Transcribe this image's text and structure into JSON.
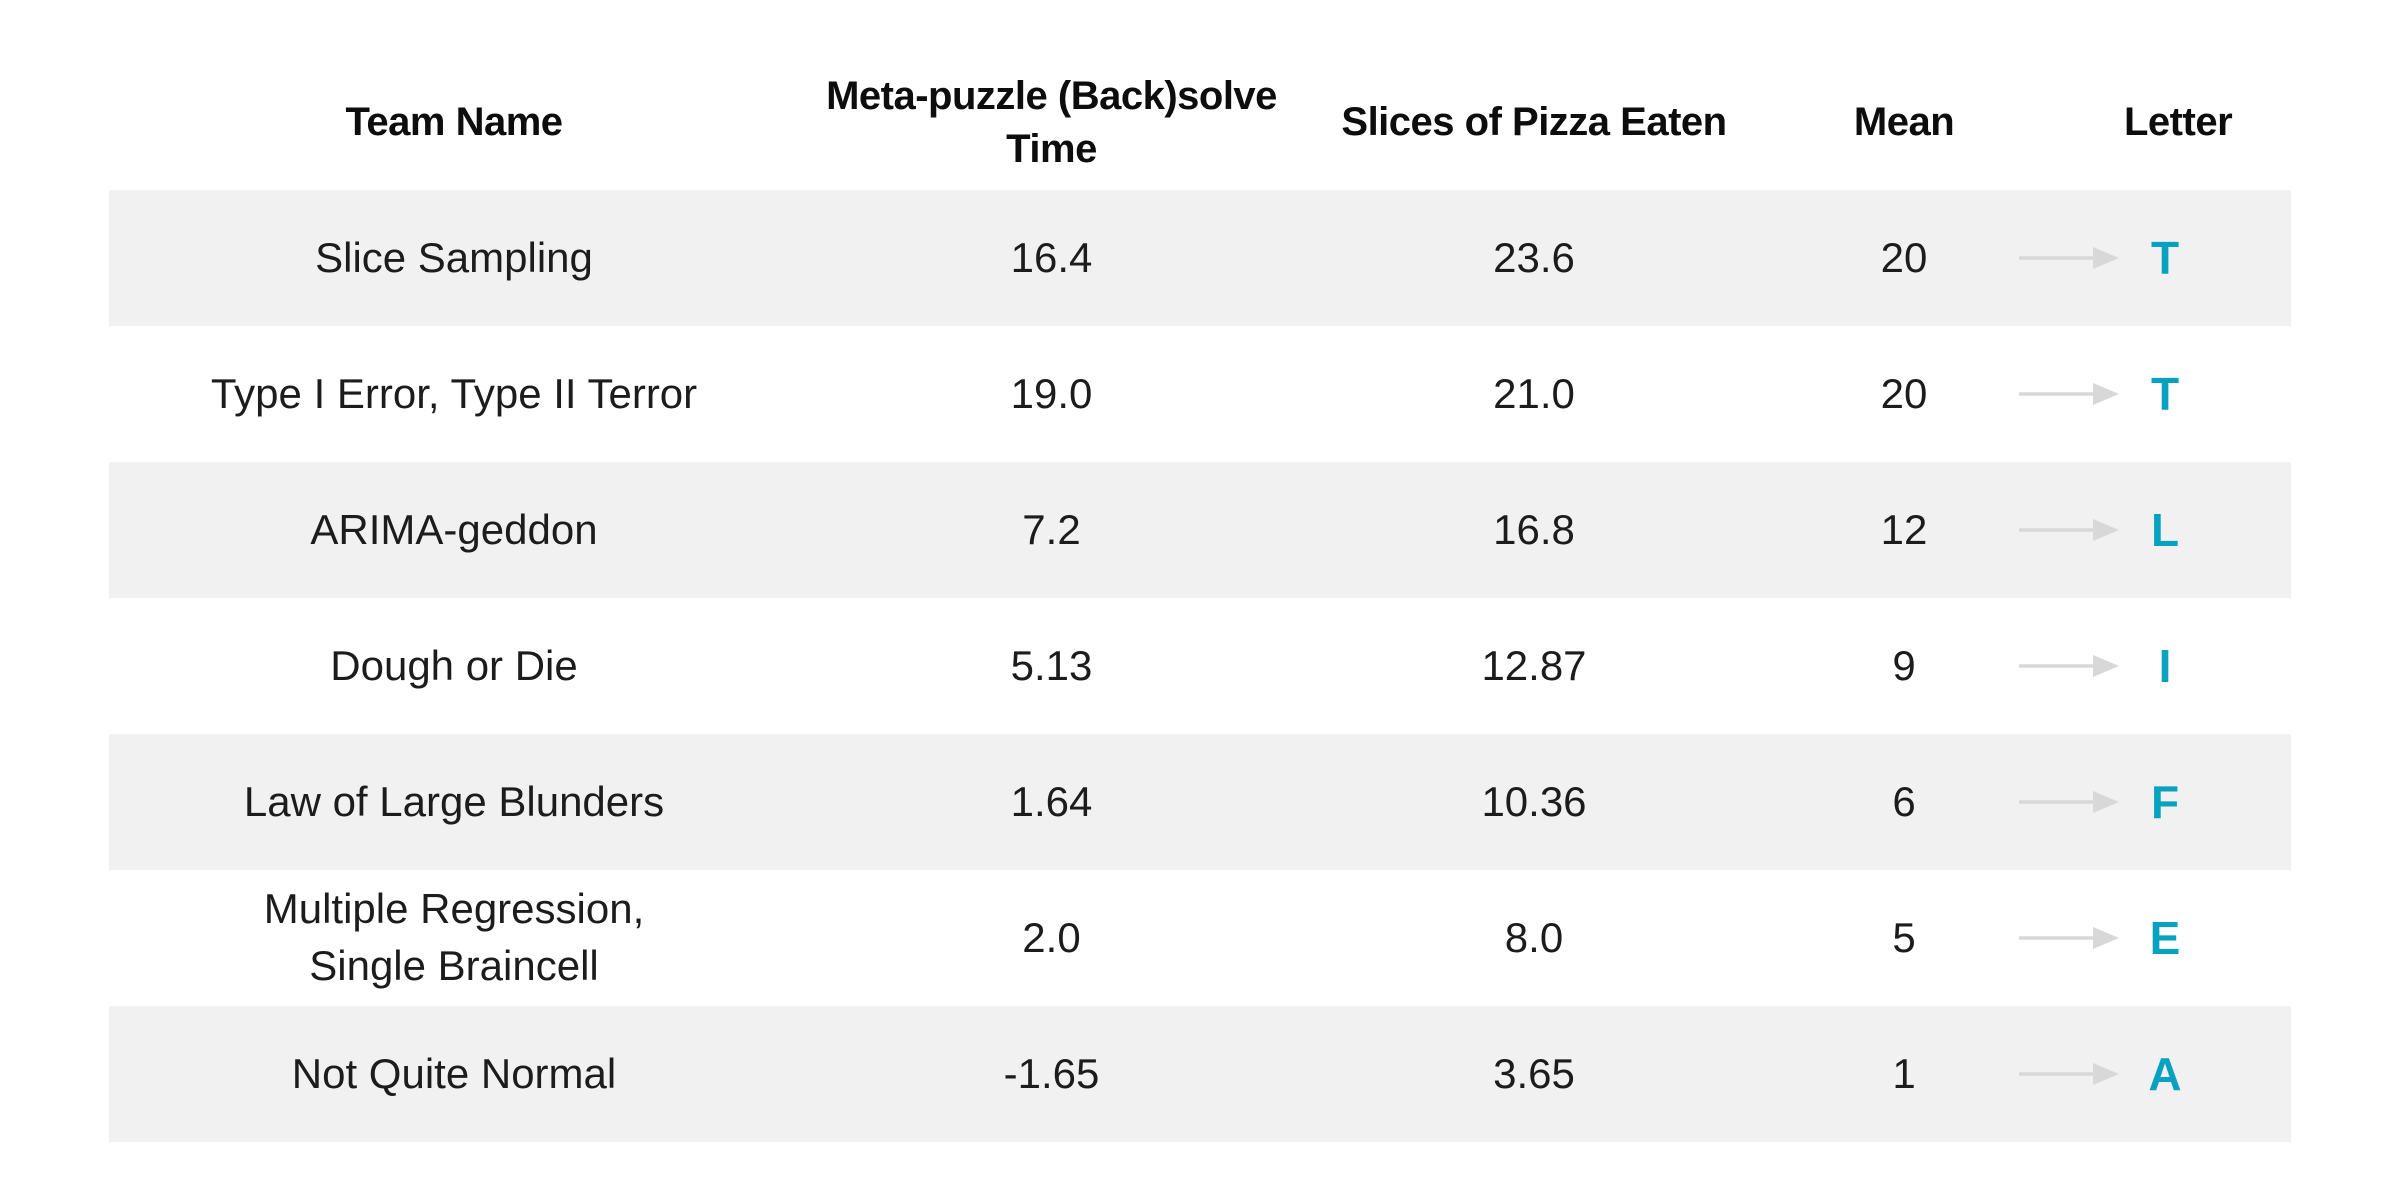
{
  "table": {
    "headers": {
      "team": "Team Name",
      "meta_line1": "Meta-puzzle",
      "meta_line2": "(Back)solve Time",
      "slices": "Slices of Pizza Eaten",
      "mean": "Mean",
      "letter": "Letter"
    },
    "rows": [
      {
        "team_lines": [
          "Slice Sampling"
        ],
        "solve_time": "16.4",
        "slices": "23.6",
        "mean": "20",
        "letter": "T"
      },
      {
        "team_lines": [
          "Type I Error, Type II Terror"
        ],
        "solve_time": "19.0",
        "slices": "21.0",
        "mean": "20",
        "letter": "T"
      },
      {
        "team_lines": [
          "ARIMA-geddon"
        ],
        "solve_time": "7.2",
        "slices": "16.8",
        "mean": "12",
        "letter": "L"
      },
      {
        "team_lines": [
          "Dough or Die"
        ],
        "solve_time": "5.13",
        "slices": "12.87",
        "mean": "9",
        "letter": "I"
      },
      {
        "team_lines": [
          "Law of Large Blunders"
        ],
        "solve_time": "1.64",
        "slices": "10.36",
        "mean": "6",
        "letter": "F"
      },
      {
        "team_lines": [
          "Multiple Regression,",
          "Single Braincell"
        ],
        "solve_time": "2.0",
        "slices": "8.0",
        "mean": "5",
        "letter": "E"
      },
      {
        "team_lines": [
          "Not Quite Normal"
        ],
        "solve_time": "-1.65",
        "slices": "3.65",
        "mean": "1",
        "letter": "A"
      }
    ]
  },
  "icons": {
    "arrow": "right-arrow"
  },
  "colors": {
    "row_stripe": "#f1f1f1",
    "letter_accent": "#08a2c0",
    "arrow": "#d8d8d8",
    "text": "#1c1c1c",
    "header_text": "#0d0d0d"
  },
  "chart_data": {
    "type": "table",
    "columns": [
      "Team Name",
      "Meta-puzzle (Back)solve Time",
      "Slices of Pizza Eaten",
      "Mean",
      "Letter"
    ],
    "rows": [
      [
        "Slice Sampling",
        16.4,
        23.6,
        20,
        "T"
      ],
      [
        "Type I Error, Type II Terror",
        19.0,
        21.0,
        20,
        "T"
      ],
      [
        "ARIMA-geddon",
        7.2,
        16.8,
        12,
        "L"
      ],
      [
        "Dough or Die",
        5.13,
        12.87,
        9,
        "I"
      ],
      [
        "Law of Large Blunders",
        1.64,
        10.36,
        6,
        "F"
      ],
      [
        "Multiple Regression, Single Braincell",
        2.0,
        8.0,
        5,
        "E"
      ],
      [
        "Not Quite Normal",
        -1.65,
        3.65,
        1,
        "A"
      ]
    ],
    "layout_hints": {
      "striped_rows": "odd data rows shaded",
      "letter_column_color": "#08a2c0",
      "arrow_between_mean_and_letter": true
    }
  }
}
